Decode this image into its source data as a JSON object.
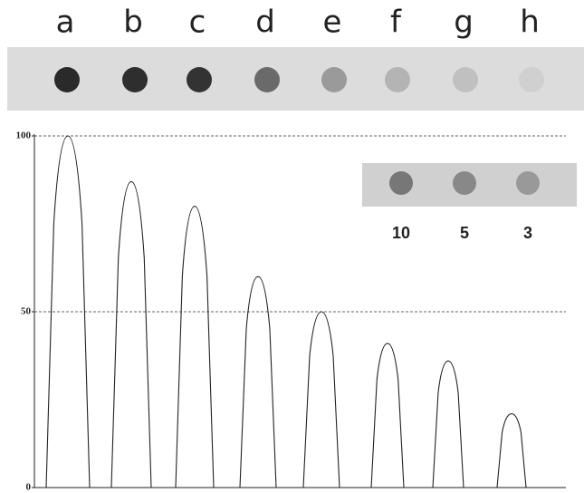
{
  "chart_data": {
    "type": "peaks",
    "categories": [
      "a",
      "b",
      "c",
      "d",
      "e",
      "f",
      "g",
      "h"
    ],
    "values": [
      100,
      87,
      80,
      60,
      50,
      41,
      36,
      21
    ],
    "dot_colors": [
      "#2a2a2a",
      "#2e2e2e",
      "#333333",
      "#6a6a6a",
      "#9a9a9a",
      "#b4b4b4",
      "#c0c0c0",
      "#d0d0d0"
    ],
    "ylim": [
      0,
      100
    ],
    "yticks": [
      0,
      50,
      100
    ],
    "grid": true,
    "color": "#222222",
    "inset": {
      "labels": [
        10,
        5,
        3
      ],
      "dot_colors": [
        "#777777",
        "#888888",
        "#999999"
      ]
    }
  }
}
